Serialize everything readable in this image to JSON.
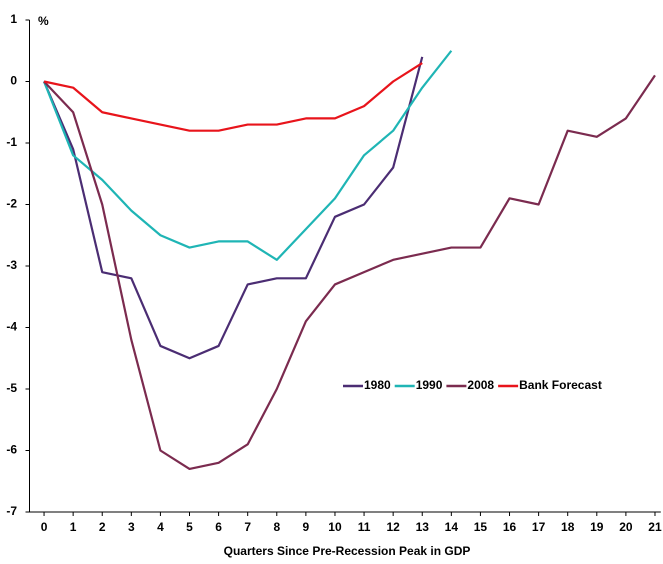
{
  "chart_data": {
    "type": "line",
    "y_label": "%",
    "x_label": "Quarters Since Pre-Recession Peak in GDP",
    "x": [
      0,
      1,
      2,
      3,
      4,
      5,
      6,
      7,
      8,
      9,
      10,
      11,
      12,
      13,
      14,
      15,
      16,
      17,
      18,
      19,
      20,
      21
    ],
    "xlim": [
      -0.5,
      21.2
    ],
    "xticks": [
      0,
      1,
      2,
      3,
      4,
      5,
      6,
      7,
      8,
      9,
      10,
      11,
      12,
      13,
      14,
      15,
      16,
      17,
      18,
      19,
      20,
      21
    ],
    "ylim": [
      -7,
      1
    ],
    "yticks": [
      -7,
      -6,
      -5,
      -4,
      -3,
      -2,
      -1,
      0,
      1
    ],
    "legend": "center-right",
    "series": [
      {
        "name": "1980",
        "color": "#4b2d73",
        "values": [
          0,
          -1.1,
          -3.1,
          -3.2,
          -4.3,
          -4.5,
          -4.3,
          -3.3,
          -3.2,
          -3.2,
          -2.2,
          -2.0,
          -1.4,
          0.4,
          null,
          null,
          null,
          null,
          null,
          null,
          null,
          null
        ]
      },
      {
        "name": "1990",
        "color": "#1fb5b5",
        "values": [
          0,
          -1.2,
          -1.6,
          -2.1,
          -2.5,
          -2.7,
          -2.6,
          -2.6,
          -2.9,
          -2.4,
          -1.9,
          -1.2,
          -0.8,
          -0.1,
          0.5,
          null,
          null,
          null,
          null,
          null,
          null,
          null
        ]
      },
      {
        "name": "2008",
        "color": "#7b2b4f",
        "values": [
          0,
          -0.5,
          -2.0,
          -4.2,
          -6.0,
          -6.3,
          -6.2,
          -5.9,
          -5.0,
          -3.9,
          -3.3,
          -3.1,
          -2.9,
          -2.8,
          -2.7,
          -2.7,
          -1.9,
          -2.0,
          -0.8,
          -0.9,
          -0.6,
          0.1
        ]
      },
      {
        "name": "Bank Forecast",
        "color": "#e8141b",
        "values": [
          0,
          -0.1,
          -0.5,
          -0.6,
          -0.7,
          -0.8,
          -0.8,
          -0.7,
          -0.7,
          -0.6,
          -0.6,
          -0.4,
          0.0,
          0.3,
          null,
          null,
          null,
          null,
          null,
          null,
          null,
          null
        ]
      }
    ]
  }
}
